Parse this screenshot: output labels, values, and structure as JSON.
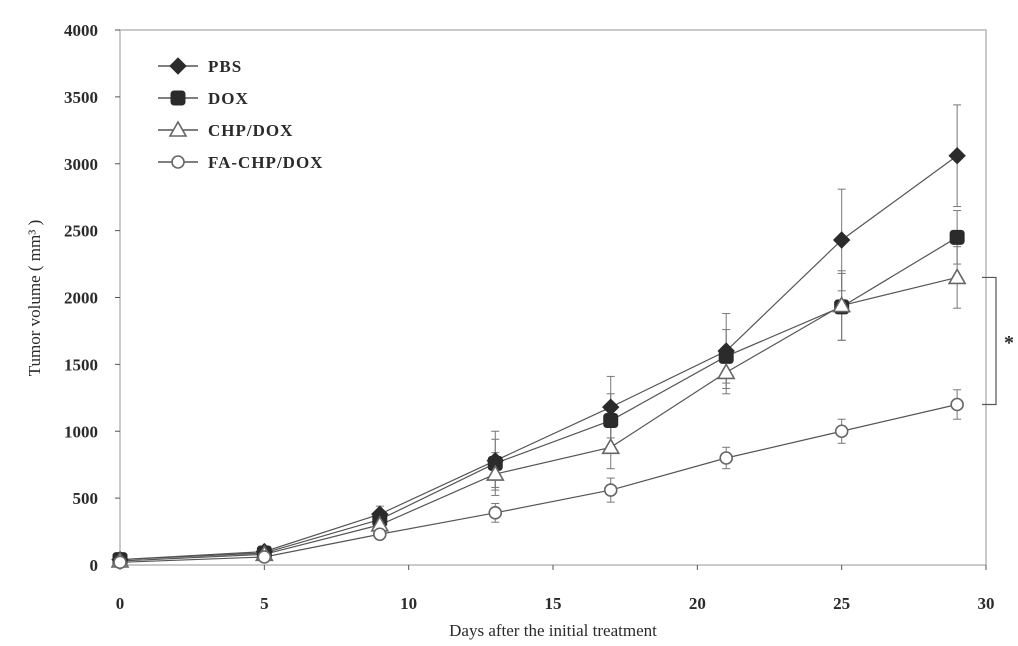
{
  "chart_data": {
    "type": "line",
    "title": "",
    "xlabel": "Days after the initial treatment",
    "ylabel": "Tumor volume ( mm³ )",
    "xlim": [
      0,
      30
    ],
    "ylim": [
      0,
      4000
    ],
    "xticks": [
      0,
      5,
      10,
      15,
      20,
      25,
      30
    ],
    "yticks": [
      0,
      500,
      1000,
      1500,
      2000,
      2500,
      3000,
      3500,
      4000
    ],
    "grid": false,
    "legend_position": "top-left",
    "significance_marker": "*",
    "significance_between": [
      "CHP/DOX",
      "FA-CHP/DOX"
    ],
    "series": [
      {
        "name": "PBS",
        "marker": "diamond",
        "x": [
          0,
          5,
          9,
          13,
          17,
          21,
          25,
          29
        ],
        "y": [
          40,
          100,
          380,
          780,
          1180,
          1600,
          2430,
          3060
        ],
        "err": [
          20,
          30,
          60,
          220,
          230,
          280,
          380,
          380
        ]
      },
      {
        "name": "DOX",
        "marker": "square",
        "x": [
          0,
          5,
          9,
          13,
          17,
          21,
          25,
          29
        ],
        "y": [
          40,
          90,
          340,
          760,
          1080,
          1560,
          1930,
          2450
        ],
        "err": [
          20,
          30,
          60,
          180,
          200,
          200,
          250,
          200
        ]
      },
      {
        "name": "CHP/DOX",
        "marker": "triangle",
        "x": [
          0,
          5,
          9,
          13,
          17,
          21,
          25,
          29
        ],
        "y": [
          30,
          80,
          300,
          680,
          880,
          1440,
          1940,
          2150
        ],
        "err": [
          15,
          25,
          60,
          160,
          160,
          160,
          260,
          230
        ]
      },
      {
        "name": "FA-CHP/DOX",
        "marker": "circle",
        "x": [
          0,
          5,
          9,
          13,
          17,
          21,
          25,
          29
        ],
        "y": [
          20,
          60,
          230,
          390,
          560,
          800,
          1000,
          1200
        ],
        "err": [
          10,
          20,
          40,
          70,
          90,
          80,
          90,
          110
        ]
      }
    ]
  }
}
